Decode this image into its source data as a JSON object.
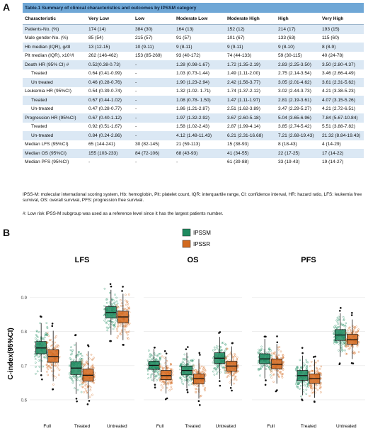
{
  "panel_a_label": "A",
  "panel_b_label": "B",
  "table": {
    "title": "Table.1 Summary of clinical characteristics and outcomes by IPSSM category",
    "columns": [
      "Characteristic",
      "Very Low",
      "Low",
      "Moderate Low",
      "Moderate High",
      "High",
      "Very High"
    ],
    "rows": [
      {
        "cells": [
          "Patients-No. (%)",
          "174 (14)",
          "384 (30)",
          "164 (13)",
          "152 (12)",
          "214 (17)",
          "193 (15)"
        ],
        "indent": false
      },
      {
        "cells": [
          "Male gender-No. (%)",
          "85 (54)",
          "215 (57)",
          "91 (57)",
          "101 (67)",
          "133 (63)",
          "115 (60)"
        ],
        "indent": false
      },
      {
        "cells": [
          "Hb median (IQR), g/dl",
          "13 (12-15)",
          "10 (9-11)",
          "9 (8-11)",
          "9 (9-11)",
          "9 (8-10)",
          "8 (8-9)"
        ],
        "indent": false
      },
      {
        "cells": [
          "Plt median (IQR), x10⁹/l",
          "262 (146-462)",
          "153 (85-269)",
          "93 (40-172)",
          "74 (44-133)",
          "59 (30-115)",
          "40 (24-78)"
        ],
        "indent": false
      },
      {
        "cells": [
          "Death HR (95% CI) #",
          "0.52(0.38-0.73)",
          "-",
          "1.28 (0.98-1.67)",
          "1.72 (1.35-2.19)",
          "2.83 (2.25-3.50)",
          "3.50 (2.80-4.37)"
        ],
        "indent": false
      },
      {
        "cells": [
          "Treated",
          "0.64 (0.41-0.99)",
          "-",
          "1.03 (0.73-1.44)",
          "1.49 (1.11-2.00)",
          "2.75 (2.14-3.54)",
          "3.46 (2.66-4.49)"
        ],
        "indent": true
      },
      {
        "cells": [
          "Un treated",
          "0.46 (0.28-0.76)",
          "-",
          "1.90 (1.23-2.94)",
          "2.42 (1.56-3.77)",
          "3.05 (2.01-4.62)",
          "3.61 (2.31-5.62)"
        ],
        "indent": true
      },
      {
        "cells": [
          "Leukemia HR (95%CI)",
          "0.54 (0.39-0.74)",
          "-",
          "1.32 (1.02-   1.71)",
          "1.74 (1.37-2.12)",
          "3.02 (2.44-3.73)",
          "4.21 (3.38-5.23)"
        ],
        "indent": false
      },
      {
        "cells": [
          "Treated",
          "0.67 (0.44-1.02)",
          "-",
          "1.08 (0.78-  1.50)",
          "1.47 (1.11-1.97)",
          "2.81 (2.19-3.61)",
          "4.07 (3.15-5.26)"
        ],
        "indent": true
      },
      {
        "cells": [
          "Un-treated",
          "0.47 (0.28-0.77)",
          "-",
          "1.86 (1.21-2.87)",
          "2.51 (1.62-3.89)",
          "3.47 (2.29-5.27)",
          "4.21 (2.72-6.51)"
        ],
        "indent": true
      },
      {
        "cells": [
          "Progression HR (95%CI)",
          "0.67 (0.40-1.12)",
          "-",
          "1.97 (1.32-2.92)",
          "3.67 (2.60-5.18)",
          "5.04 (3.65-6.96)",
          "7.84 (5.67-10.84)"
        ],
        "indent": false
      },
      {
        "cells": [
          "Treated",
          "0.92 (0.51-1.67)",
          "-",
          "1.58 (1.02-2.43)",
          "2.87 (1.99-4.14)",
          "3.85 (2.74-5.42)",
          "5.51 (3.88-7.82)"
        ],
        "indent": true
      },
      {
        "cells": [
          "Un-treated",
          "0.84 (0.24-2.86)",
          "-",
          "4.12 (1.48-11.43)",
          "6.21 (2.31-16.68)",
          "7.21 (2.68-19.43)",
          "21.32 (8.84-19.43)"
        ],
        "indent": true
      },
      {
        "cells": [
          "Median LFS (95%CI)",
          "65 (144-241)",
          "30 (82-145)",
          "21 (59-113)",
          "15 (38-93)",
          "8 (18-43)",
          "4 (14-29)"
        ],
        "indent": false
      },
      {
        "cells": [
          "Median OS (95%CI)",
          "155 (103-233)",
          "84 (72-106)",
          "68 (43-93)",
          "41 (34-55)",
          "22 (17-25)",
          "17 (14-22)"
        ],
        "indent": false
      },
      {
        "cells": [
          "Median PFS (95%CI)",
          "-",
          "-",
          "-",
          "61 (39-88)",
          "33 (19-43)",
          "19 (14-27)"
        ],
        "indent": false
      }
    ]
  },
  "footnote_abbrev": "IPSS-M: molecular international scoring system, Hb: hemoglobin, Plt: platelet count, IQR: interquartile range, CI: confidence interval, HR: hazard ratio, LFS: leukemia free survival, OS: overall survival, PFS: progression free survival.",
  "footnote_ref": "#:  Low risk IPSS-M subgroup was used as a reference level since it has the largest patients number.",
  "colors": {
    "ipssm": "#1e8a5f",
    "ipssr": "#d2691e",
    "title_bg": "#6fa7d6",
    "row_shade": "#dbe8f4"
  },
  "chart_data": {
    "type": "boxplot",
    "ylabel": "C-index(95%CI)",
    "ylim": [
      0.55,
      0.92
    ],
    "yticks": [
      0.6,
      0.7,
      0.8,
      0.9
    ],
    "legend": {
      "placement": "top-center",
      "entries": [
        "IPSSM",
        "IPSSR"
      ]
    },
    "facets": [
      {
        "title": "LFS",
        "groups": [
          {
            "label": "Full",
            "ipssm": {
              "q1": 0.735,
              "median": 0.752,
              "q3": 0.771,
              "lo": 0.66,
              "hi": 0.86
            },
            "ipssr": {
              "q1": 0.71,
              "median": 0.727,
              "q3": 0.747,
              "lo": 0.64,
              "hi": 0.835
            }
          },
          {
            "label": "Treated",
            "ipssm": {
              "q1": 0.674,
              "median": 0.693,
              "q3": 0.712,
              "lo": 0.59,
              "hi": 0.83
            },
            "ipssr": {
              "q1": 0.655,
              "median": 0.672,
              "q3": 0.69,
              "lo": 0.58,
              "hi": 0.77
            }
          },
          {
            "label": "Untreated",
            "ipssm": {
              "q1": 0.84,
              "median": 0.856,
              "q3": 0.873,
              "lo": 0.76,
              "hi": 0.93
            },
            "ipssr": {
              "q1": 0.826,
              "median": 0.843,
              "q3": 0.86,
              "lo": 0.72,
              "hi": 0.93
            }
          }
        ]
      },
      {
        "title": "OS",
        "groups": [
          {
            "label": "Full",
            "ipssm": {
              "q1": 0.689,
              "median": 0.701,
              "q3": 0.713,
              "lo": 0.645,
              "hi": 0.765
            },
            "ipssr": {
              "q1": 0.659,
              "median": 0.671,
              "q3": 0.686,
              "lo": 0.61,
              "hi": 0.74
            }
          },
          {
            "label": "Treated",
            "ipssm": {
              "q1": 0.673,
              "median": 0.686,
              "q3": 0.699,
              "lo": 0.61,
              "hi": 0.76
            },
            "ipssr": {
              "q1": 0.647,
              "median": 0.662,
              "q3": 0.676,
              "lo": 0.59,
              "hi": 0.74
            }
          },
          {
            "label": "Untreated",
            "ipssm": {
              "q1": 0.707,
              "median": 0.722,
              "q3": 0.738,
              "lo": 0.655,
              "hi": 0.79
            },
            "ipssr": {
              "q1": 0.684,
              "median": 0.699,
              "q3": 0.713,
              "lo": 0.63,
              "hi": 0.77
            }
          }
        ]
      },
      {
        "title": "PFS",
        "groups": [
          {
            "label": "Full",
            "ipssm": {
              "q1": 0.706,
              "median": 0.72,
              "q3": 0.735,
              "lo": 0.65,
              "hi": 0.8
            },
            "ipssr": {
              "q1": 0.691,
              "median": 0.704,
              "q3": 0.72,
              "lo": 0.63,
              "hi": 0.79
            }
          },
          {
            "label": "Treated",
            "ipssm": {
              "q1": 0.657,
              "median": 0.671,
              "q3": 0.686,
              "lo": 0.6,
              "hi": 0.74
            },
            "ipssr": {
              "q1": 0.648,
              "median": 0.662,
              "q3": 0.676,
              "lo": 0.58,
              "hi": 0.74
            }
          },
          {
            "label": "Untreated",
            "ipssm": {
              "q1": 0.774,
              "median": 0.79,
              "q3": 0.806,
              "lo": 0.71,
              "hi": 0.88
            },
            "ipssr": {
              "q1": 0.763,
              "median": 0.776,
              "q3": 0.792,
              "lo": 0.7,
              "hi": 0.85
            }
          }
        ]
      }
    ]
  }
}
